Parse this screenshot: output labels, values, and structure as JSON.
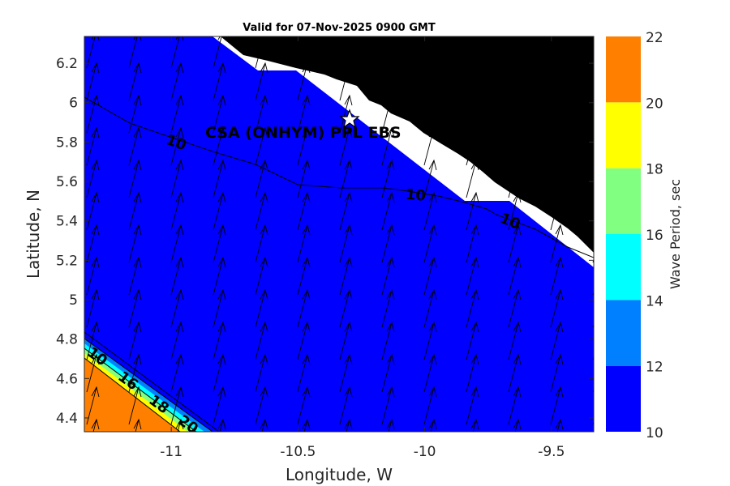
{
  "chart_data": {
    "type": "heatmap",
    "title": "Valid for 07-Nov-2025 0900 GMT",
    "xlabel": "Longitude, W",
    "ylabel": "Latitude, N",
    "xlim": [
      -11.343,
      -9.333
    ],
    "ylim": [
      4.33,
      6.336
    ],
    "xticks": [
      -11,
      -10.5,
      -10,
      -9.5
    ],
    "xtick_labels": [
      "-11",
      "-10.5",
      "-10",
      "-9.5"
    ],
    "yticks": [
      4.4,
      4.6,
      4.8,
      5,
      5.2,
      5.4,
      5.6,
      5.8,
      6,
      6.2
    ],
    "ytick_labels": [
      "4.4",
      "4.6",
      "4.8",
      "5",
      "5.2",
      "5.4",
      "5.6",
      "5.8",
      "6",
      "6.2"
    ],
    "colorbar": {
      "label": "Wave Period, sec",
      "levels": [
        10,
        12,
        14,
        16,
        18,
        20,
        22
      ],
      "tick_labels": [
        "10",
        "12",
        "14",
        "16",
        "18",
        "20",
        "22"
      ],
      "colors": [
        "#0000ff",
        "#0080ff",
        "#00ffff",
        "#80ff80",
        "#ffff00",
        "#ff8000"
      ]
    },
    "contour_labels": [
      "10",
      "10",
      "10",
      "10",
      "16",
      "18",
      "20"
    ],
    "site": {
      "label": "CSA (ONHYM) PPL EBS",
      "lon": -10.3,
      "lat": 5.92
    },
    "arrow_direction": "north-northeast",
    "grid": false
  }
}
